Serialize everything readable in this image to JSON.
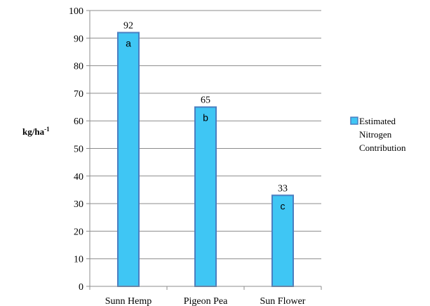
{
  "chart_data": {
    "type": "bar",
    "categories": [
      "Sunn Hemp",
      "Pigeon Pea",
      "Sun Flower"
    ],
    "series": [
      {
        "name": "Estimated Nitrogen Contribution",
        "values": [
          92,
          65,
          33
        ],
        "significance_letters": [
          "a",
          "b",
          "c"
        ]
      }
    ],
    "ylabel": "kg/ha",
    "ylabel_superscript": "-1",
    "ylim": [
      0,
      100
    ],
    "yticks": [
      0,
      10,
      20,
      30,
      40,
      50,
      60,
      70,
      80,
      90,
      100
    ],
    "grid": true,
    "legend": {
      "placement": "right",
      "lines": [
        "Estimated",
        "Nitrogen",
        "Contribution"
      ]
    },
    "colors": {
      "bar_fill": "#3fc6f4",
      "bar_stroke": "#4a7fc1",
      "grid": "#8c8c8c",
      "axis": "#8c8c8c"
    }
  }
}
